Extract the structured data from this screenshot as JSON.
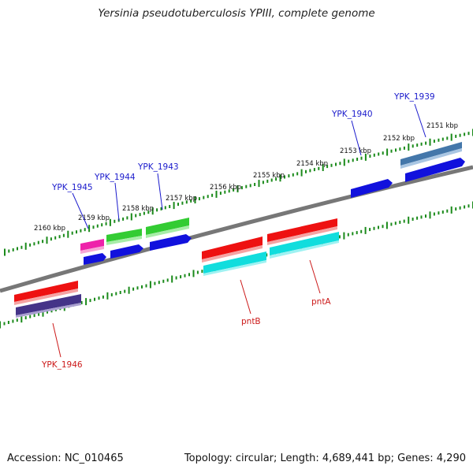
{
  "title": "Yersinia pseudotuberculosis YPIII, complete genome",
  "accession": "Accession: NC_010465",
  "topology": "Topology: circular; Length: 4,689,441 bp; Genes: 4,290",
  "colors": {
    "backbone": "#777777",
    "tick": "#1a8a1a",
    "label_top": "#1a1acc",
    "label_bottom": "#cc1a1a",
    "red": "#ee1111",
    "blue": "#1111dd",
    "green": "#33cc33",
    "magenta": "#ee22aa",
    "cyan": "#11dddd",
    "navy": "#443388",
    "steel": "#4477aa"
  },
  "kbp_labels": [
    "2151 kbp",
    "2152 kbp",
    "2153 kbp",
    "2154 kbp",
    "2155 kbp",
    "2156 kbp",
    "2157 kbp",
    "2158 kbp",
    "2159 kbp",
    "2160 kbp"
  ],
  "gene_labels_top": [
    "YPK_1939",
    "YPK_1940",
    "YPK_1943",
    "YPK_1944",
    "YPK_1945"
  ],
  "gene_labels_bottom": [
    "YPK_1946",
    "pntB",
    "pntA"
  ]
}
